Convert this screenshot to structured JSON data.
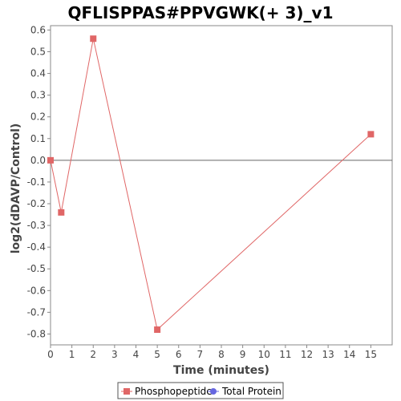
{
  "chart_data": {
    "type": "line",
    "title": "QFLISPPAS#PPVGWK(+ 3)_v1",
    "xlabel": "Time (minutes)",
    "ylabel": "log2(dDAVP/Control)",
    "xlim": [
      0,
      16
    ],
    "ylim": [
      -0.85,
      0.62
    ],
    "xticks": [
      0,
      1,
      2,
      3,
      4,
      5,
      6,
      7,
      8,
      9,
      10,
      11,
      12,
      13,
      14,
      15
    ],
    "yticks": [
      0.6,
      0.5,
      0.4,
      0.3,
      0.2,
      0.1,
      0.0,
      -0.1,
      -0.2,
      -0.3,
      -0.4,
      -0.5,
      -0.6,
      -0.7,
      -0.8
    ],
    "xtick_labels": [
      "0",
      "1",
      "2",
      "3",
      "4",
      "5",
      "6",
      "7",
      "8",
      "9",
      "10",
      "11",
      "12",
      "13",
      "14",
      "15"
    ],
    "ytick_labels": [
      "0.6",
      "0.5",
      "0.4",
      "0.3",
      "0.2",
      "0.1",
      "0.0",
      "-0.1",
      "-0.2",
      "-0.3",
      "-0.4",
      "-0.5",
      "-0.6",
      "-0.7",
      "-0.8"
    ],
    "grid": false,
    "zero_line": true,
    "legend_position": "bottom",
    "series": [
      {
        "name": "Phosphopeptide",
        "color": "#e06666",
        "marker": "square",
        "x": [
          0,
          0.5,
          2,
          5,
          15
        ],
        "y": [
          0.0,
          -0.24,
          0.56,
          -0.78,
          0.12
        ]
      },
      {
        "name": "Total Protein",
        "color": "#6666e0",
        "marker": "circle",
        "x": [],
        "y": []
      }
    ]
  }
}
